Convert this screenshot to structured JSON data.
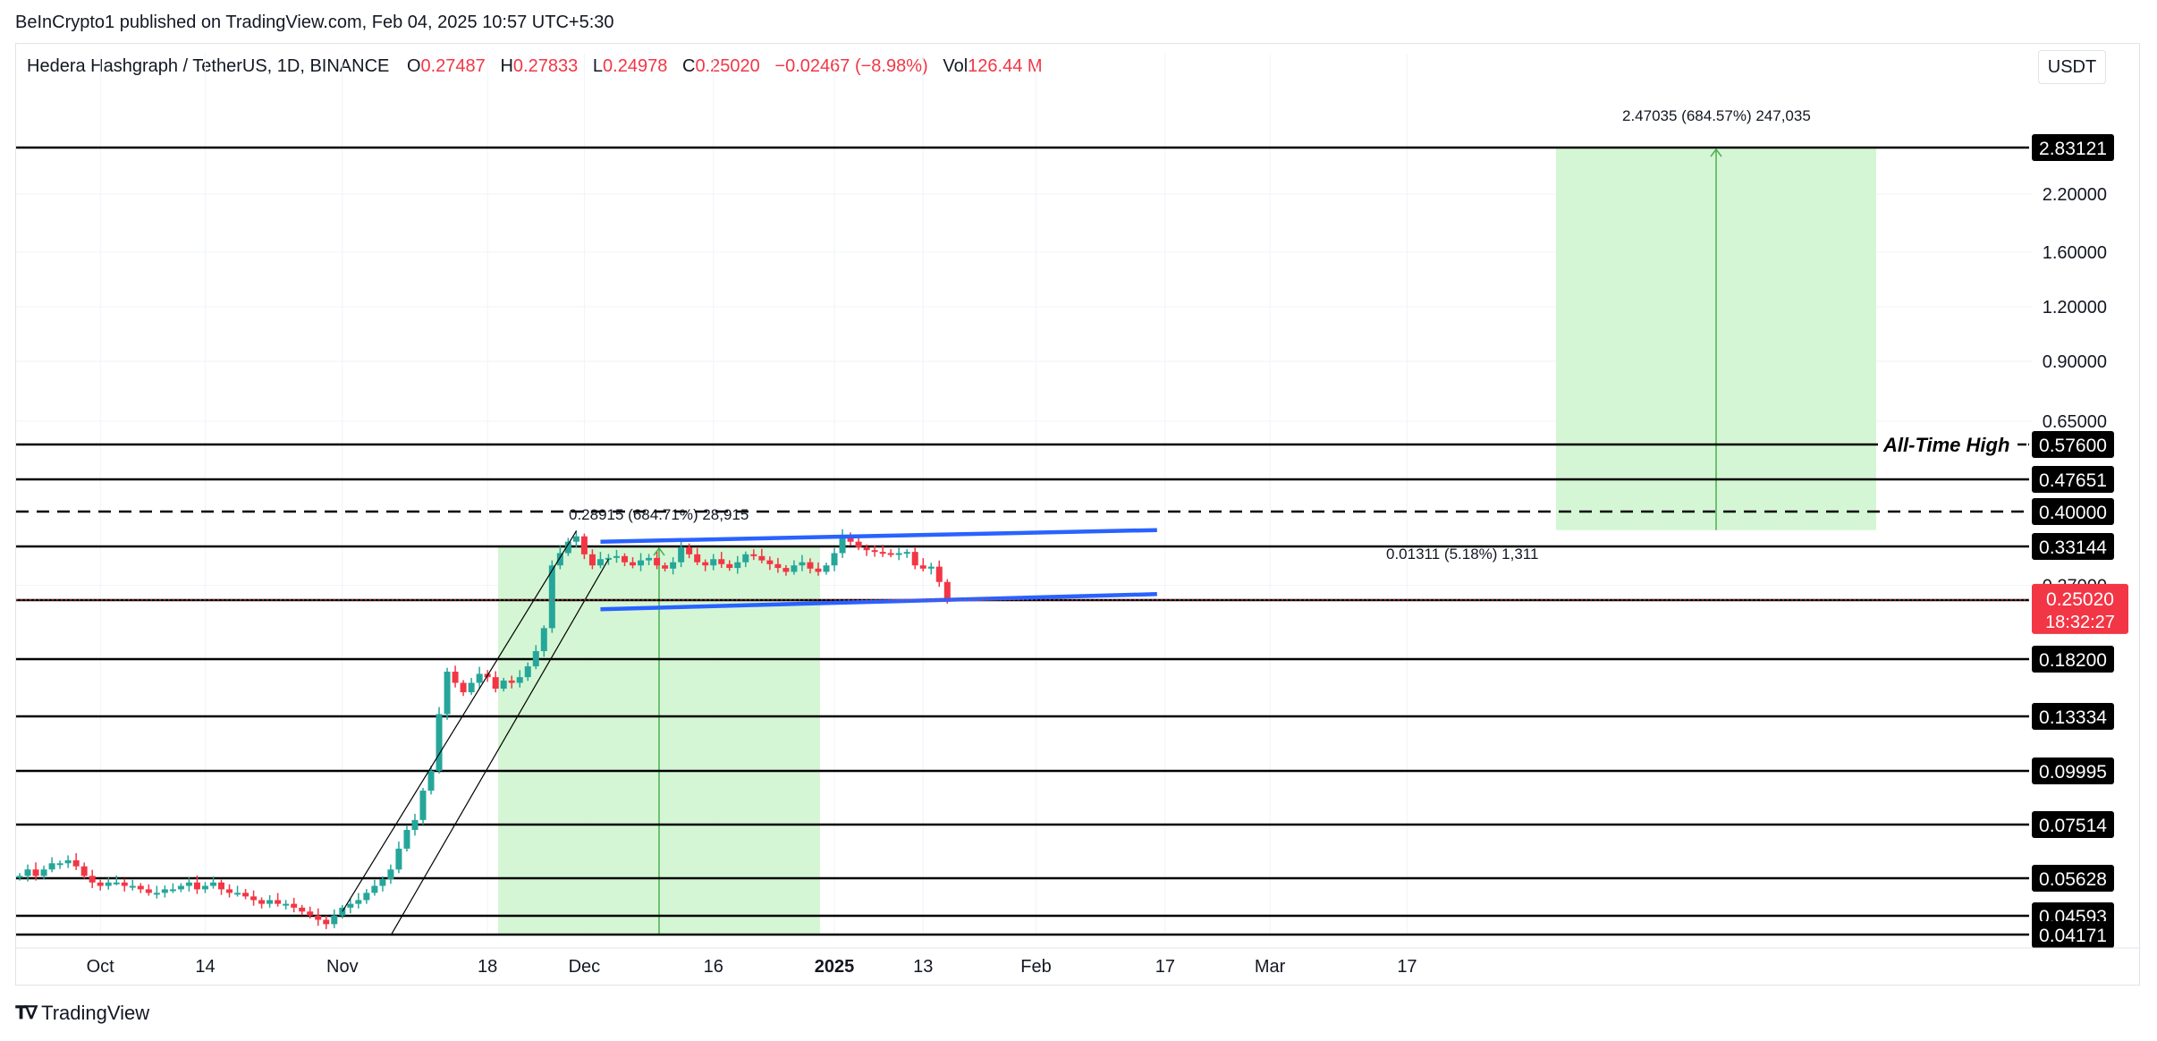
{
  "header": {
    "publisher": "BeInCrypto1 published on TradingView.com, Feb 04, 2025 10:57 UTC+5:30",
    "symbol": "Hedera Hashgraph / TetherUS, 1D, BINANCE",
    "ohlc": {
      "o_label": "O",
      "o_value": "0.27487",
      "h_label": "H",
      "h_value": "0.27833",
      "l_label": "L",
      "l_value": "0.24978",
      "c_label": "C",
      "c_value": "0.25020",
      "change": "−0.02467 (−8.98%)",
      "vol_label": "Vol",
      "vol_value": "126.44 M"
    },
    "currency": "USDT"
  },
  "footer": {
    "brand": "TradingView"
  },
  "colors": {
    "up": "#26a69a",
    "down": "#f23645",
    "channel": "#2962ff",
    "target_fill": "#ccf5cc",
    "target_line": "#4caf50",
    "level": "#000000"
  },
  "chart_data": {
    "type": "candlestick",
    "symbol": "HBAR/USDT",
    "interval": "1D",
    "x_ticks": [
      "Oct",
      "14",
      "Nov",
      "18",
      "Dec",
      "16",
      "2025",
      "13",
      "Feb",
      "17",
      "Mar",
      "17"
    ],
    "y_scale": "log",
    "y_ticks": [
      "2.20000",
      "1.60000",
      "1.20000",
      "0.90000",
      "0.65000",
      "0.27000"
    ],
    "horizontal_levels": [
      {
        "value": "2.83121",
        "style": "solid"
      },
      {
        "value": "0.57600",
        "style": "solid",
        "label": "All-Time High"
      },
      {
        "value": "0.47651",
        "style": "solid"
      },
      {
        "value": "0.40000",
        "style": "dashed"
      },
      {
        "value": "0.33144",
        "style": "solid"
      },
      {
        "value": "0.25000",
        "style": "solid"
      },
      {
        "value": "0.18200",
        "style": "solid"
      },
      {
        "value": "0.13334",
        "style": "solid"
      },
      {
        "value": "0.09995",
        "style": "solid"
      },
      {
        "value": "0.07514",
        "style": "solid"
      },
      {
        "value": "0.05628",
        "style": "solid"
      },
      {
        "value": "0.04593",
        "style": "solid"
      },
      {
        "value": "0.04171",
        "style": "solid"
      }
    ],
    "current_price": {
      "value": "0.25020",
      "countdown": "18:32:27"
    },
    "annotations": [
      {
        "text": "2.47035 (684.57%) 247,035"
      },
      {
        "text": "0.28915 (684.71%) 28,915"
      },
      {
        "text": "0.01311 (5.18%) 1,311"
      }
    ],
    "channel": {
      "upper": [
        0.34,
        0.362
      ],
      "lower": [
        0.238,
        0.258
      ],
      "from": "Dec 6",
      "to": "Feb 14"
    },
    "candles_close": [
      0.057,
      0.059,
      0.057,
      0.059,
      0.061,
      0.061,
      0.062,
      0.06,
      0.057,
      0.055,
      0.054,
      0.055,
      0.055,
      0.054,
      0.054,
      0.053,
      0.052,
      0.052,
      0.053,
      0.053,
      0.054,
      0.055,
      0.053,
      0.054,
      0.055,
      0.053,
      0.052,
      0.052,
      0.051,
      0.05,
      0.049,
      0.05,
      0.049,
      0.049,
      0.048,
      0.047,
      0.046,
      0.045,
      0.044,
      0.046,
      0.048,
      0.049,
      0.05,
      0.052,
      0.054,
      0.056,
      0.059,
      0.066,
      0.073,
      0.077,
      0.09,
      0.1,
      0.135,
      0.17,
      0.16,
      0.152,
      0.16,
      0.168,
      0.165,
      0.155,
      0.162,
      0.16,
      0.165,
      0.175,
      0.19,
      0.215,
      0.3,
      0.32,
      0.34,
      0.35,
      0.318,
      0.3,
      0.31,
      0.312,
      0.315,
      0.305,
      0.3,
      0.308,
      0.312,
      0.3,
      0.295,
      0.305,
      0.33,
      0.318,
      0.305,
      0.3,
      0.31,
      0.302,
      0.296,
      0.305,
      0.318,
      0.315,
      0.308,
      0.302,
      0.296,
      0.29,
      0.3,
      0.305,
      0.295,
      0.29,
      0.3,
      0.32,
      0.35,
      0.34,
      0.33,
      0.325,
      0.322,
      0.32,
      0.318,
      0.32,
      0.322,
      0.3,
      0.295,
      0.298,
      0.275,
      0.2502
    ]
  }
}
